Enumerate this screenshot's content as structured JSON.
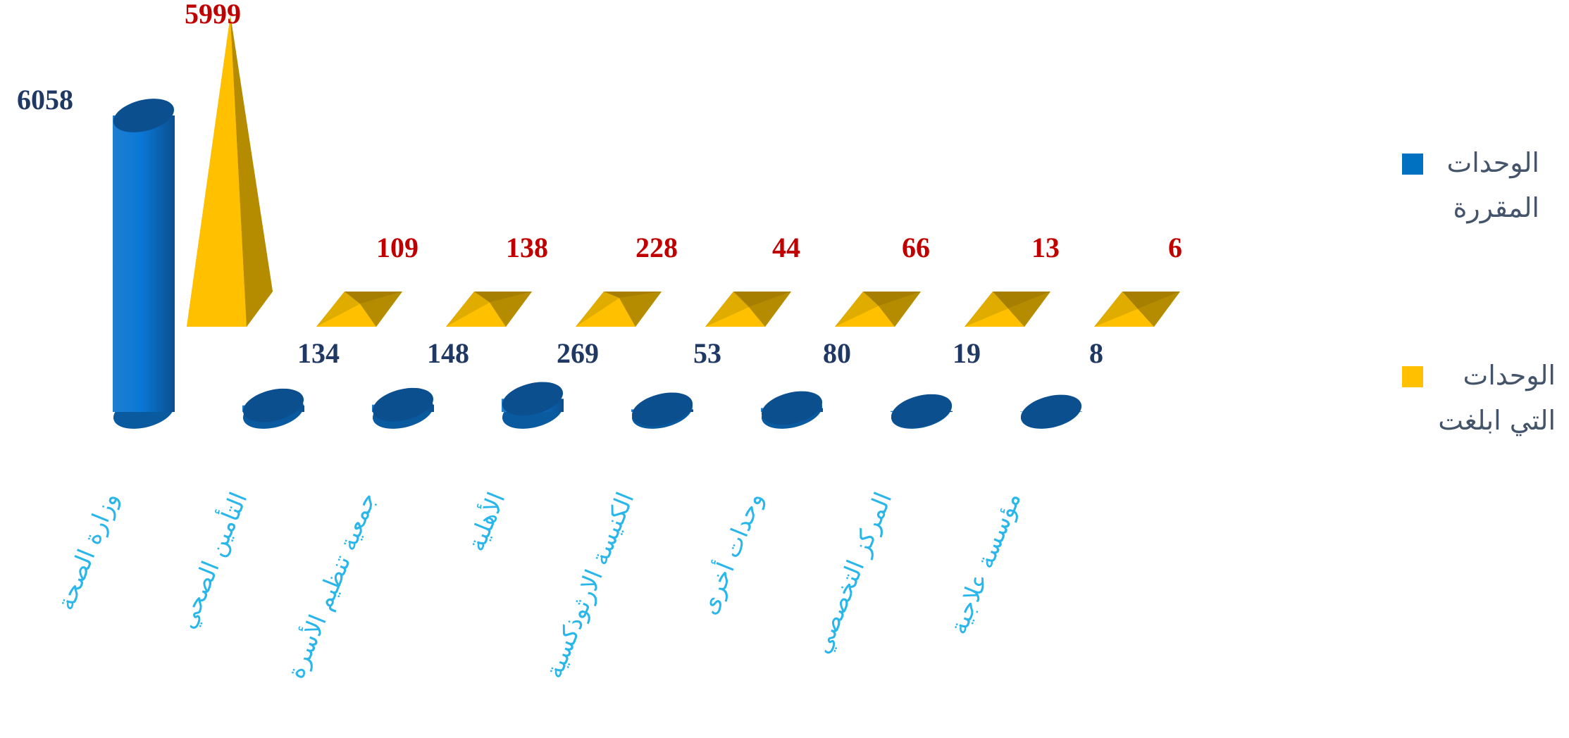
{
  "chart_data": {
    "type": "bar3d",
    "categories": [
      "وزارة الصحة",
      "التأمين الصحي",
      "جمعية تنظيم الأسرة",
      "الأهلية",
      "الكنيسة الارثوذكسية",
      "وحدات أخرى",
      "المركز التخصصي",
      "مؤسسة علاجية"
    ],
    "series": [
      {
        "name": "الوحدات المقررة",
        "color": "#0070c0",
        "values": [
          6058,
          134,
          148,
          269,
          53,
          80,
          19,
          8
        ]
      },
      {
        "name": "الوحدات التي ابلغت",
        "color": "#ffc000",
        "values": [
          5999,
          109,
          138,
          228,
          44,
          66,
          13,
          6
        ]
      }
    ]
  }
}
